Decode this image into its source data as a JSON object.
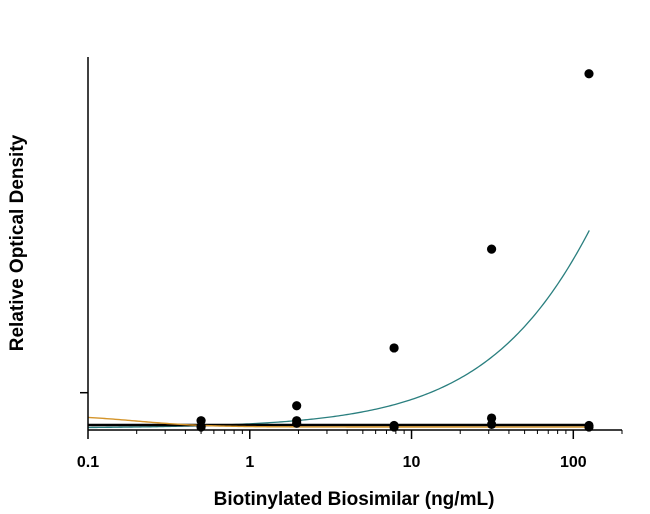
{
  "chart_data": {
    "type": "scatter",
    "title": "",
    "xlabel": "Biotinylated Biosimilar (ng/mL)",
    "ylabel": "Relative Optical Density",
    "x_scale": "log",
    "xlim": [
      0.1,
      200
    ],
    "ylim": [
      0,
      1
    ],
    "x_tick_labels": [
      "0.1",
      "1",
      "10",
      "100"
    ],
    "x_tick_values": [
      0.1,
      1,
      10,
      100
    ],
    "y_tick_values": [
      0.1
    ],
    "grid": false,
    "legend": "none",
    "series": [
      {
        "color": "#2a7f7f",
        "points": [
          {
            "x": 0.5,
            "y": 0.01
          },
          {
            "x": 1.95,
            "y": 0.065
          },
          {
            "x": 7.8,
            "y": 0.22
          },
          {
            "x": 31.25,
            "y": 0.485
          },
          {
            "x": 125,
            "y": 0.955
          }
        ],
        "fit": {
          "bottom": 0.005,
          "top": 3.0,
          "ec50": 800,
          "hill": 0.83
        }
      },
      {
        "color": "#000000",
        "points": [
          {
            "x": 0.5,
            "y": 0.025
          },
          {
            "x": 1.95,
            "y": 0.018
          },
          {
            "x": 7.8,
            "y": 0.008
          },
          {
            "x": 31.25,
            "y": 0.032
          },
          {
            "x": 125,
            "y": 0.008
          }
        ],
        "fit": {
          "bottom": 0.015,
          "top": 0.015,
          "ec50": 10,
          "hill": 1
        }
      },
      {
        "color": "#000000",
        "points": [
          {
            "x": 0.5,
            "y": 0.008
          },
          {
            "x": 1.95,
            "y": 0.025
          },
          {
            "x": 7.8,
            "y": 0.012
          },
          {
            "x": 31.25,
            "y": 0.015
          },
          {
            "x": 125,
            "y": 0.012
          }
        ],
        "fit": {
          "bottom": 0.012,
          "top": 0.012,
          "ec50": 10,
          "hill": 1
        }
      },
      {
        "color": "#d4942a",
        "points": [],
        "fit": {
          "bottom": 0.008,
          "top": 0.04,
          "ec50": 0.2,
          "hill": -2
        }
      }
    ]
  }
}
